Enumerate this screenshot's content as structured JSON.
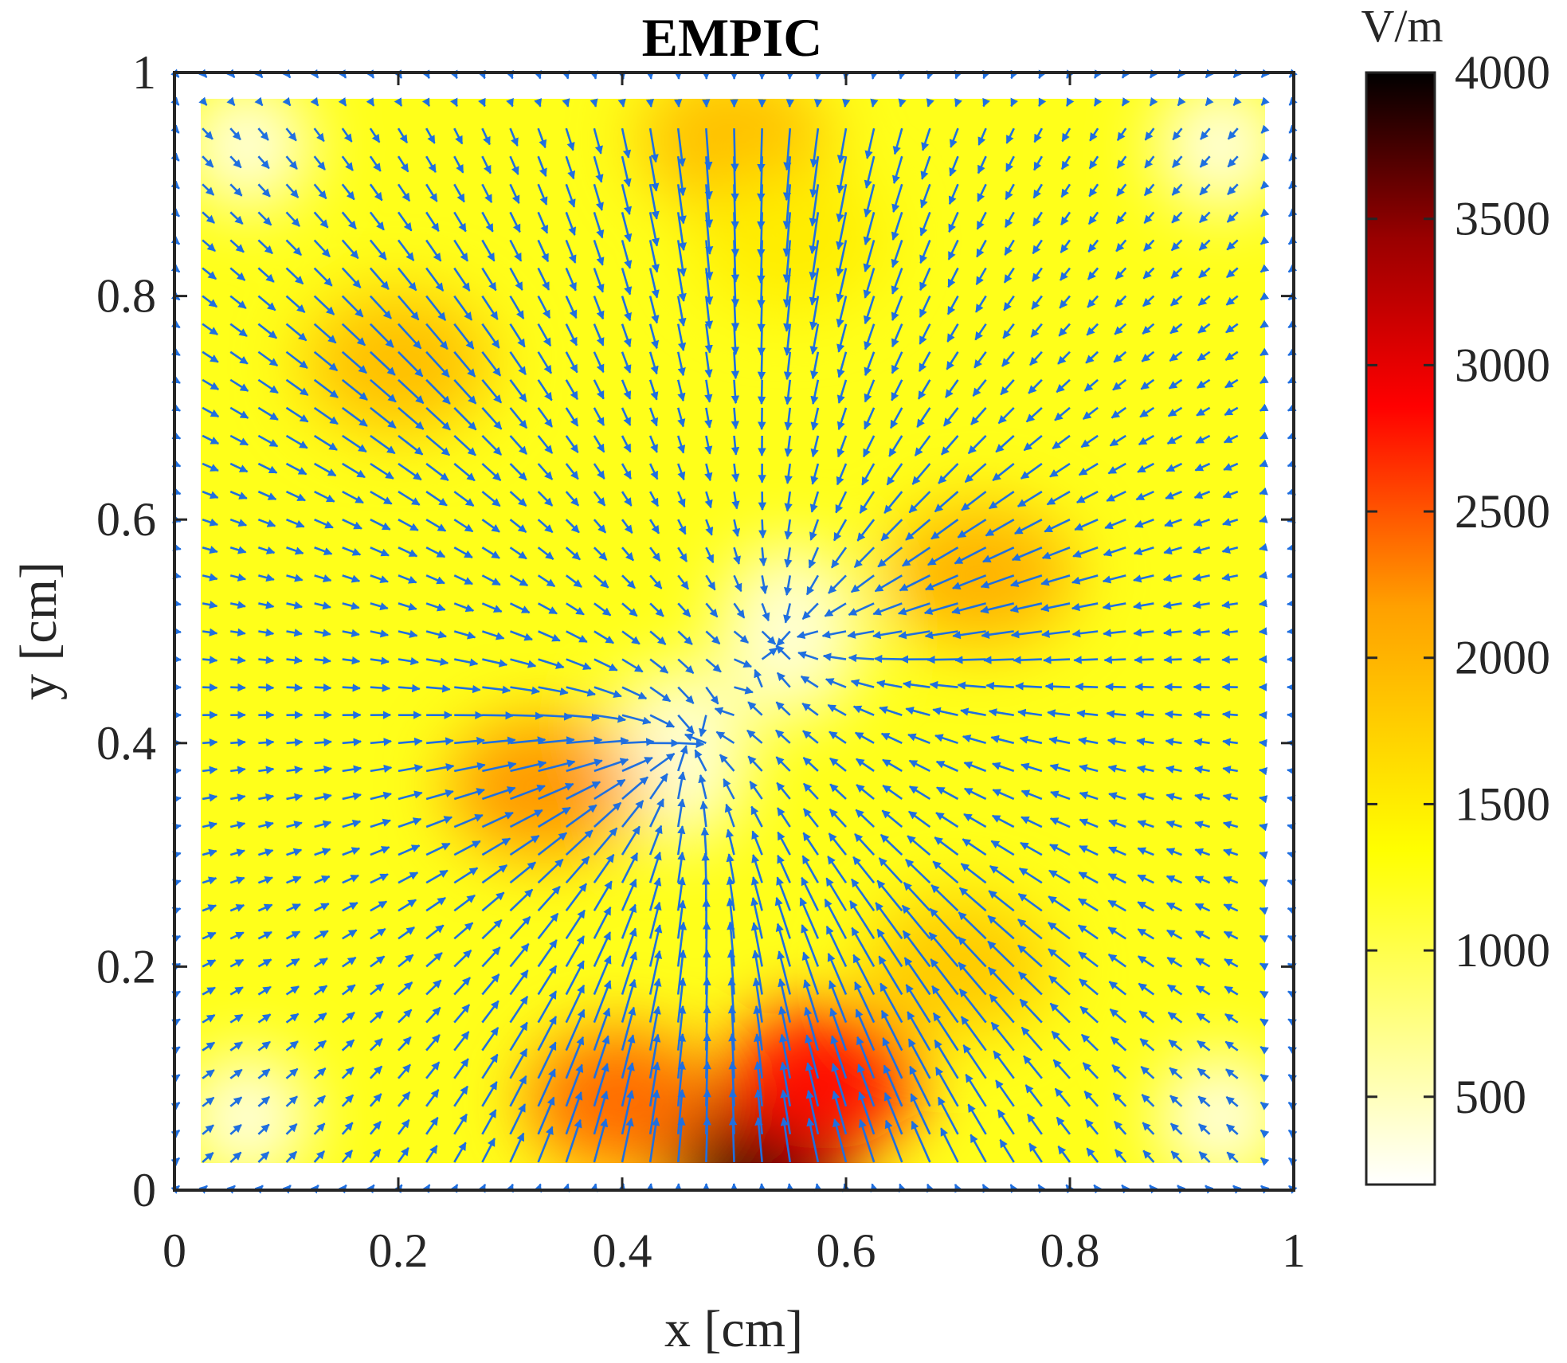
{
  "chart_data": {
    "type": "heatmap",
    "title": "EMPIC",
    "xlabel": "x [cm]",
    "ylabel": "y [cm]",
    "xlim": [
      0,
      1
    ],
    "ylim": [
      0,
      1
    ],
    "x_ticks": [
      "0",
      "0.2",
      "0.4",
      "0.6",
      "0.8",
      "1"
    ],
    "y_ticks": [
      "0",
      "0.2",
      "0.4",
      "0.6",
      "0.8",
      "1"
    ],
    "colorbar": {
      "unit_label": "V/m",
      "range": [
        200,
        4000
      ],
      "ticks": [
        "500",
        "1000",
        "1500",
        "2000",
        "2500",
        "3000",
        "3500",
        "4000"
      ],
      "colormap": "hot (inverted): white-yellow-orange-red-black"
    },
    "field_extent": [
      0.025,
      0.975
    ],
    "hotspots": [
      {
        "x": 0.52,
        "y": 0.03,
        "value": 4000
      },
      {
        "x": 0.58,
        "y": 0.1,
        "value": 2800
      },
      {
        "x": 0.4,
        "y": 0.08,
        "value": 2400
      },
      {
        "x": 0.33,
        "y": 0.36,
        "value": 2200
      },
      {
        "x": 0.2,
        "y": 0.74,
        "value": 1900
      },
      {
        "x": 0.72,
        "y": 0.55,
        "value": 2000
      },
      {
        "x": 0.7,
        "y": 0.2,
        "value": 1800
      },
      {
        "x": 0.5,
        "y": 0.94,
        "value": 1900
      },
      {
        "x": 0.55,
        "y": 0.85,
        "value": 1500
      }
    ],
    "quiver": {
      "color": "#1f6fe0",
      "grid_step": 0.025,
      "sources": [
        {
          "x": 0.45,
          "y": 0.39
        },
        {
          "x": 0.55,
          "y": 0.5
        }
      ]
    }
  }
}
